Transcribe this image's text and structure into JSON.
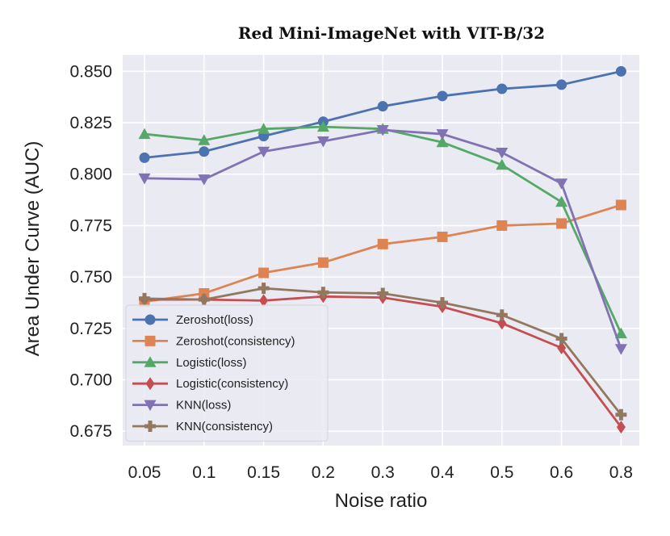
{
  "chart_data": {
    "type": "line",
    "title": "Red Mini-ImageNet with VIT-B/32",
    "xlabel": "Noise ratio",
    "ylabel": "Area Under Curve (AUC)",
    "categories": [
      "0.05",
      "0.1",
      "0.15",
      "0.2",
      "0.3",
      "0.4",
      "0.5",
      "0.6",
      "0.8"
    ],
    "ylim": [
      0.668,
      0.858
    ],
    "yticks": [
      0.675,
      0.7,
      0.725,
      0.75,
      0.775,
      0.8,
      0.825,
      0.85
    ],
    "ytick_labels": [
      "0.675",
      "0.700",
      "0.725",
      "0.750",
      "0.775",
      "0.800",
      "0.825",
      "0.850"
    ],
    "grid": true,
    "legend_position": "lower-left",
    "series": [
      {
        "name": "Zeroshot(loss)",
        "color": "#4c72b0",
        "marker": "circle",
        "values": [
          0.808,
          0.811,
          0.8185,
          0.8255,
          0.833,
          0.838,
          0.8415,
          0.8435,
          0.85
        ]
      },
      {
        "name": "Zeroshot(consistency)",
        "color": "#dd8452",
        "marker": "square",
        "values": [
          0.738,
          0.742,
          0.752,
          0.757,
          0.766,
          0.7695,
          0.775,
          0.776,
          0.785
        ]
      },
      {
        "name": "Logistic(loss)",
        "color": "#55a868",
        "marker": "triangle-up",
        "values": [
          0.8195,
          0.8165,
          0.822,
          0.823,
          0.822,
          0.8155,
          0.8045,
          0.7865,
          0.7225
        ]
      },
      {
        "name": "Logistic(consistency)",
        "color": "#c44e52",
        "marker": "diamond",
        "values": [
          0.739,
          0.739,
          0.7385,
          0.7405,
          0.74,
          0.7355,
          0.7275,
          0.7155,
          0.677
        ]
      },
      {
        "name": "KNN(loss)",
        "color": "#8172b3",
        "marker": "triangle-down",
        "values": [
          0.798,
          0.7975,
          0.811,
          0.816,
          0.8215,
          0.8195,
          0.8105,
          0.7955,
          0.715
        ]
      },
      {
        "name": "KNN(consistency)",
        "color": "#937860",
        "marker": "plus",
        "values": [
          0.7395,
          0.739,
          0.7445,
          0.7425,
          0.742,
          0.7375,
          0.7315,
          0.72,
          0.683
        ]
      }
    ]
  }
}
